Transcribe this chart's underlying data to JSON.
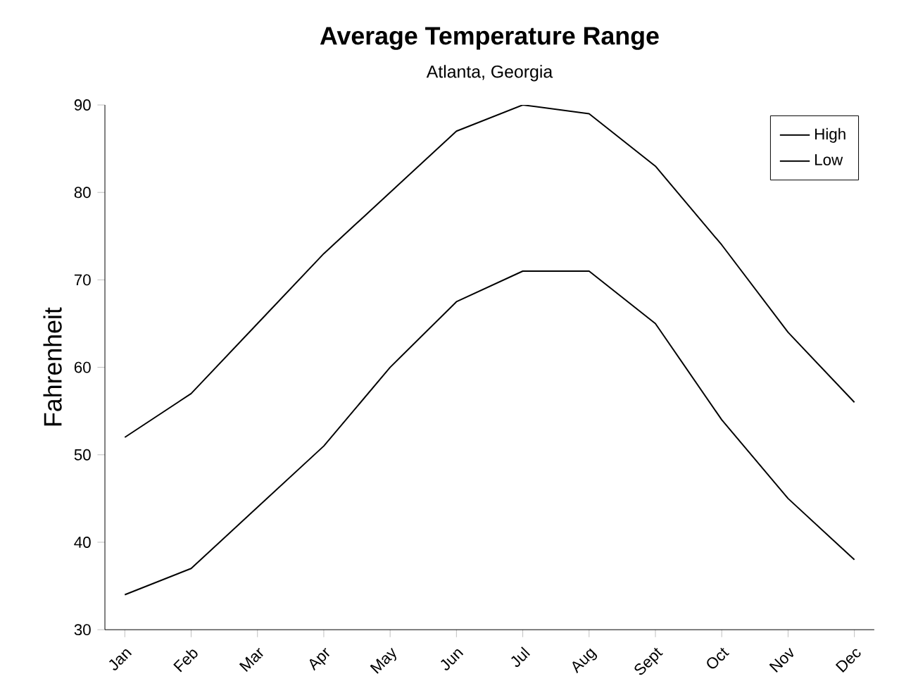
{
  "chart_data": {
    "type": "line",
    "title": "Average Temperature Range",
    "subtitle": "Atlanta, Georgia",
    "ylabel": "Fahrenheit",
    "categories": [
      "Jan",
      "Feb",
      "Mar",
      "Apr",
      "May",
      "Jun",
      "Jul",
      "Aug",
      "Sept",
      "Oct",
      "Nov",
      "Dec"
    ],
    "series": [
      {
        "name": "High",
        "color": "#000000",
        "values": [
          52,
          57,
          65,
          73,
          80,
          87,
          90,
          89,
          83,
          74,
          64,
          56
        ]
      },
      {
        "name": "Low",
        "color": "#000000",
        "values": [
          34,
          37,
          44,
          51,
          60,
          67.5,
          71,
          71,
          65,
          54,
          45,
          38
        ]
      }
    ],
    "ylim": [
      30,
      90
    ],
    "yticks": [
      30,
      40,
      50,
      60,
      70,
      80,
      90
    ],
    "grid": false,
    "legend": "top right",
    "marker": "none",
    "line_style": "solid"
  }
}
